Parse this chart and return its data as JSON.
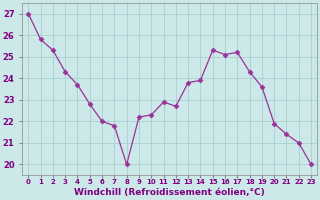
{
  "x": [
    0,
    1,
    2,
    3,
    4,
    5,
    6,
    7,
    8,
    9,
    10,
    11,
    12,
    13,
    14,
    15,
    16,
    17,
    18,
    19,
    20,
    21,
    22,
    23
  ],
  "y": [
    27.0,
    25.8,
    25.3,
    24.3,
    23.7,
    22.8,
    22.0,
    21.8,
    20.0,
    22.2,
    22.3,
    22.9,
    22.7,
    23.8,
    23.9,
    25.3,
    25.1,
    25.2,
    24.3,
    23.6,
    21.9,
    21.4,
    21.0,
    20.0
  ],
  "line_color": "#993399",
  "marker": "D",
  "marker_size": 2.5,
  "bg_color": "#cce8e8",
  "grid_color": "#aad0d0",
  "xlabel": "Windchill (Refroidissement éolien,°C)",
  "xlabel_color": "#800080",
  "tick_label_color": "#800080",
  "ylim": [
    19.5,
    27.5
  ],
  "xlim": [
    -0.5,
    23.5
  ],
  "yticks": [
    20,
    21,
    22,
    23,
    24,
    25,
    26,
    27
  ],
  "xticks": [
    0,
    1,
    2,
    3,
    4,
    5,
    6,
    7,
    8,
    9,
    10,
    11,
    12,
    13,
    14,
    15,
    16,
    17,
    18,
    19,
    20,
    21,
    22,
    23
  ],
  "xtick_labels": [
    "0",
    "1",
    "2",
    "3",
    "4",
    "5",
    "6",
    "7",
    "8",
    "9",
    "10",
    "11",
    "12",
    "13",
    "14",
    "15",
    "16",
    "17",
    "18",
    "19",
    "20",
    "21",
    "22",
    "23"
  ],
  "spine_color": "#888888",
  "figsize": [
    3.2,
    2.0
  ],
  "dpi": 100
}
